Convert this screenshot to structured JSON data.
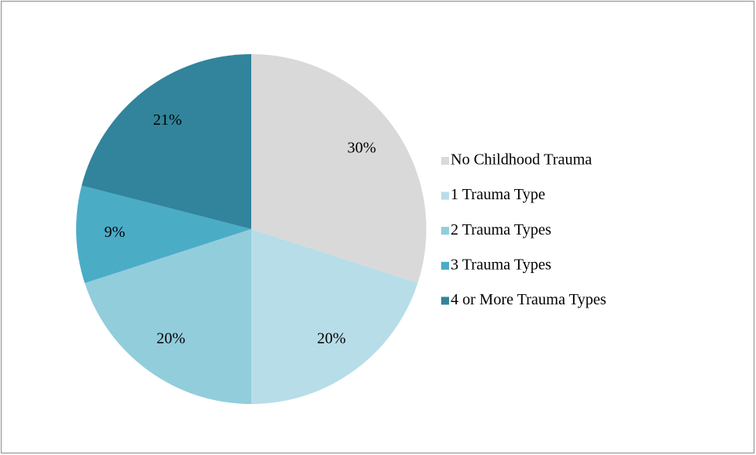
{
  "chart_data": {
    "type": "pie",
    "categories": [
      "No Childhood Trauma",
      "1 Trauma Type",
      "2 Trauma Types",
      "3 Trauma Types",
      "4 or More Trauma Types"
    ],
    "values": [
      30,
      20,
      20,
      9,
      21
    ],
    "value_labels": [
      "30%",
      "20%",
      "20%",
      "9%",
      "21%"
    ],
    "colors": [
      "#d9d9d9",
      "#b7dde8",
      "#92cddc",
      "#4bacc6",
      "#31849b"
    ],
    "legend": "right"
  }
}
